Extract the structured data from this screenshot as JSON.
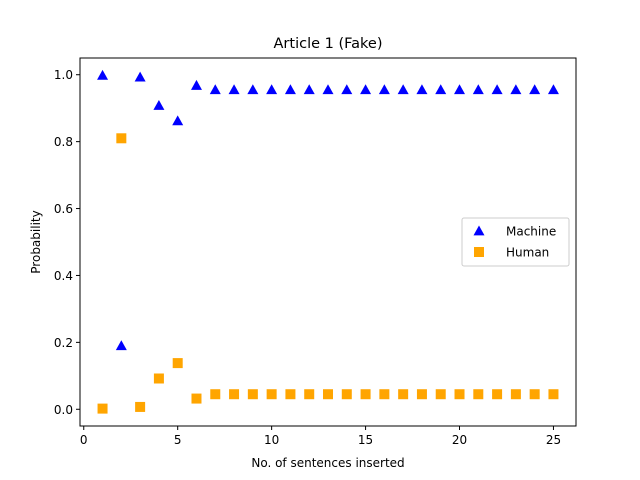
{
  "chart_data": {
    "type": "scatter",
    "title": "Article 1 (Fake)",
    "xlabel": "No. of sentences inserted",
    "ylabel": "Probability",
    "xlim": [
      -0.2,
      26.2
    ],
    "ylim": [
      -0.05,
      1.05
    ],
    "xticks": [
      0,
      5,
      10,
      15,
      20,
      25
    ],
    "yticks": [
      0.0,
      0.2,
      0.4,
      0.6,
      0.8,
      1.0
    ],
    "grid": false,
    "legend_position": "center-right",
    "series": [
      {
        "name": "Machine",
        "marker": "triangle",
        "color": "#0000ff",
        "x": [
          1,
          2,
          3,
          4,
          5,
          6,
          7,
          8,
          9,
          10,
          11,
          12,
          13,
          14,
          15,
          16,
          17,
          18,
          19,
          20,
          21,
          22,
          23,
          24,
          25
        ],
        "y": [
          0.998,
          0.19,
          0.993,
          0.908,
          0.862,
          0.968,
          0.955,
          0.955,
          0.955,
          0.955,
          0.955,
          0.955,
          0.955,
          0.955,
          0.955,
          0.955,
          0.955,
          0.955,
          0.955,
          0.955,
          0.955,
          0.955,
          0.955,
          0.955,
          0.955
        ]
      },
      {
        "name": "Human",
        "marker": "square",
        "color": "#ffa500",
        "x": [
          1,
          2,
          3,
          4,
          5,
          6,
          7,
          8,
          9,
          10,
          11,
          12,
          13,
          14,
          15,
          16,
          17,
          18,
          19,
          20,
          21,
          22,
          23,
          24,
          25
        ],
        "y": [
          0.002,
          0.81,
          0.007,
          0.092,
          0.138,
          0.032,
          0.045,
          0.045,
          0.045,
          0.045,
          0.045,
          0.045,
          0.045,
          0.045,
          0.045,
          0.045,
          0.045,
          0.045,
          0.045,
          0.045,
          0.045,
          0.045,
          0.045,
          0.045,
          0.045
        ]
      }
    ]
  }
}
